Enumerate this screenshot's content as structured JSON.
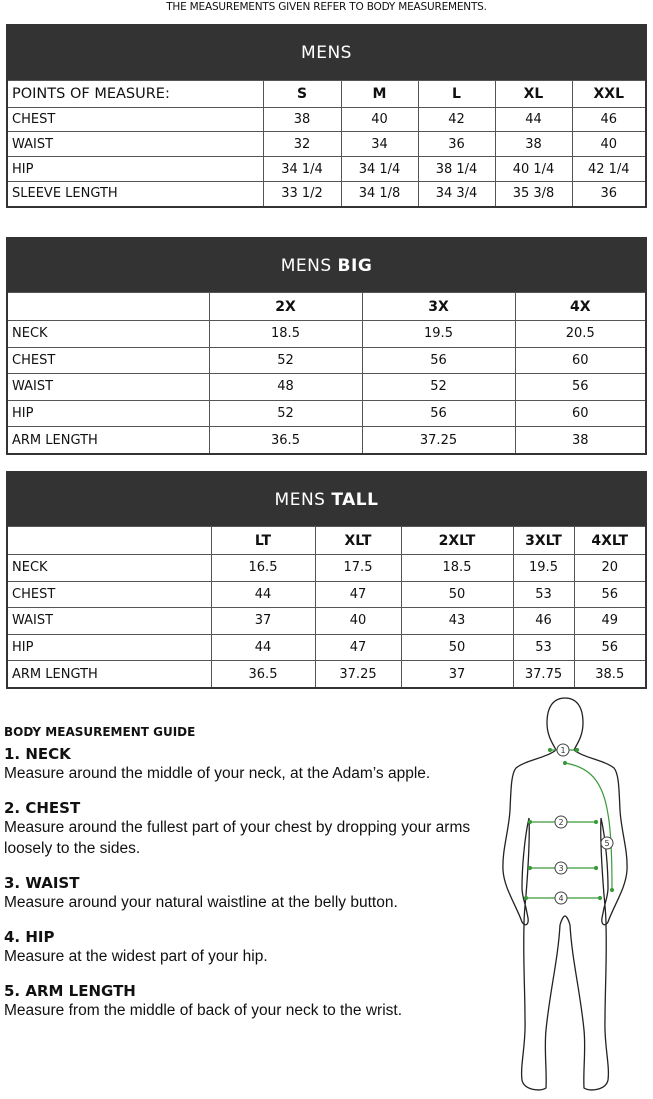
{
  "note": "THE MEASUREMENTS GIVEN REFER TO BODY MEASUREMENTS.",
  "mens": {
    "title": "MENS",
    "header": [
      "POINTS OF MEASURE:",
      "S",
      "M",
      "L",
      "XL",
      "XXL"
    ],
    "rows": [
      [
        "CHEST",
        "38",
        "40",
        "42",
        "44",
        "46"
      ],
      [
        "WAIST",
        "32",
        "34",
        "36",
        "38",
        "40"
      ],
      [
        "HIP",
        "34 1/4",
        "34 1/4",
        "38 1/4",
        "40 1/4",
        "42 1/4"
      ],
      [
        "SLEEVE LENGTH",
        "33 1/2",
        "34 1/8",
        "34 3/4",
        "35 3/8",
        "36"
      ]
    ]
  },
  "mens_big": {
    "title_a": "MENS ",
    "title_b": "BIG",
    "header": [
      "",
      "2X",
      "3X",
      "4X"
    ],
    "rows": [
      [
        "NECK",
        "18.5",
        "19.5",
        "20.5"
      ],
      [
        "CHEST",
        "52",
        "56",
        "60"
      ],
      [
        "WAIST",
        "48",
        "52",
        "56"
      ],
      [
        "HIP",
        "52",
        "56",
        "60"
      ],
      [
        "ARM LENGTH",
        "36.5",
        "37.25",
        "38"
      ]
    ]
  },
  "mens_tall": {
    "title_a": "MENS ",
    "title_b": "TALL",
    "header": [
      "",
      "LT",
      "XLT",
      "2XLT",
      "3XLT",
      "4XLT"
    ],
    "rows": [
      [
        "NECK",
        "16.5",
        "17.5",
        "18.5",
        "19.5",
        "20"
      ],
      [
        "CHEST",
        "44",
        "47",
        "50",
        "53",
        "56"
      ],
      [
        "WAIST",
        "37",
        "40",
        "43",
        "46",
        "49"
      ],
      [
        "HIP",
        "44",
        "47",
        "50",
        "53",
        "56"
      ],
      [
        "ARM LENGTH",
        "36.5",
        "37.25",
        "37",
        "37.75",
        "38.5"
      ]
    ]
  },
  "guide": {
    "title": "BODY MEASUREMENT GUIDE",
    "items": [
      {
        "title": "1. NECK",
        "text": "Measure around the middle of your neck, at the Adam’s apple."
      },
      {
        "title": "2. CHEST",
        "text": "Measure around the fullest part of your chest by dropping your arms loosely to the sides."
      },
      {
        "title": "3. WAIST",
        "text": "Measure around your natural waistline at the belly button."
      },
      {
        "title": "4. HIP",
        "text": "Measure at the widest part of your hip."
      },
      {
        "title": "5. ARM LENGTH",
        "text": "Measure from the middle of back of your neck to the wrist."
      }
    ]
  },
  "figure": {
    "markers": [
      "1",
      "2",
      "3",
      "4",
      "5"
    ],
    "accent": "#3a9a3a",
    "header_bg": "#333333"
  }
}
